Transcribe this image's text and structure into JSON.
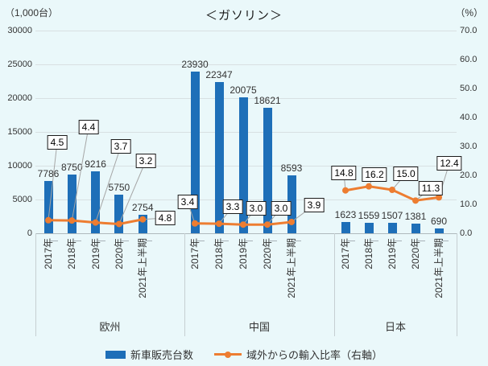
{
  "legend": {
    "bar_label": "新車販売台数",
    "line_label": "域外からの輸入比率（右軸）"
  },
  "chart_data": {
    "type": "bar-line-combo",
    "title": "＜ガソリン＞",
    "y_left": {
      "unit": "（1,000台）",
      "min": 0,
      "max": 30000,
      "tick_step": 5000,
      "ticks": [
        "0",
        "5000",
        "10000",
        "15000",
        "20000",
        "25000",
        "30000"
      ]
    },
    "y_right": {
      "unit": "（%）",
      "min": 0,
      "max": 70,
      "tick_step": 10,
      "ticks": [
        "0.0",
        "10.0",
        "20.0",
        "30.0",
        "40.0",
        "50.0",
        "60.0",
        "70.0"
      ]
    },
    "categories": [
      "2017年",
      "2018年",
      "2019年",
      "2020年",
      "2021年上半期"
    ],
    "series": [
      {
        "name": "新車販売台数",
        "type": "bar",
        "axis": "left"
      },
      {
        "name": "域外からの輸入比率（右軸）",
        "type": "line",
        "axis": "right"
      }
    ],
    "groups": [
      {
        "name": "欧州",
        "bar_values": [
          7786,
          8750,
          9216,
          5750,
          2754
        ],
        "line_values": [
          4.5,
          4.4,
          3.7,
          3.2,
          4.8
        ]
      },
      {
        "name": "中国",
        "bar_values": [
          23930,
          22347,
          20075,
          18621,
          8593
        ],
        "line_values": [
          3.4,
          3.3,
          3.0,
          3.0,
          3.9
        ]
      },
      {
        "name": "日本",
        "bar_values": [
          1623,
          1559,
          1507,
          1381,
          690
        ],
        "line_values": [
          14.8,
          16.2,
          15.0,
          11.3,
          12.4
        ]
      }
    ],
    "colors": {
      "bar": "#1E6FB8",
      "line": "#ED7D31",
      "background": "#EAF8FA",
      "callout_border": "#1a1a1a",
      "leader": "#A6A6A6"
    },
    "grid": "horizontal",
    "legend_position": "bottom"
  }
}
